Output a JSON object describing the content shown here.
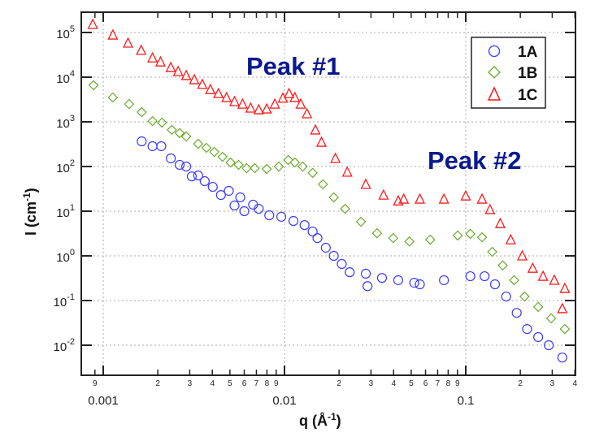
{
  "chart_data": {
    "type": "scatter",
    "xscale": "log",
    "yscale": "log",
    "xlabel": "q (Å",
    "xlabel_sup": "-1",
    "xlabel_end": ")",
    "ylabel": "I (cm",
    "ylabel_sup": "-1",
    "ylabel_end": ")",
    "xlim": [
      0.00075,
      0.41
    ],
    "ylim": [
      0.0022,
      280000
    ],
    "grid": true,
    "legend_position": "top-right",
    "x_major_ticks": [
      {
        "value": 0.001,
        "label": "0.001"
      },
      {
        "value": 0.01,
        "label": "0.01"
      },
      {
        "value": 0.1,
        "label": "0.1"
      }
    ],
    "x_minor_ticks": [
      {
        "value": 0.0009,
        "label": "9"
      },
      {
        "value": 0.002,
        "label": "2"
      },
      {
        "value": 0.003,
        "label": "3"
      },
      {
        "value": 0.004,
        "label": "4"
      },
      {
        "value": 0.005,
        "label": "5"
      },
      {
        "value": 0.006,
        "label": "6"
      },
      {
        "value": 0.007,
        "label": "7"
      },
      {
        "value": 0.008,
        "label": "8"
      },
      {
        "value": 0.009,
        "label": "9"
      },
      {
        "value": 0.02,
        "label": "2"
      },
      {
        "value": 0.03,
        "label": "3"
      },
      {
        "value": 0.04,
        "label": "4"
      },
      {
        "value": 0.05,
        "label": "5"
      },
      {
        "value": 0.06,
        "label": "6"
      },
      {
        "value": 0.07,
        "label": "7"
      },
      {
        "value": 0.08,
        "label": "8"
      },
      {
        "value": 0.09,
        "label": "9"
      },
      {
        "value": 0.2,
        "label": "2"
      },
      {
        "value": 0.3,
        "label": "3"
      },
      {
        "value": 0.4,
        "label": "4"
      }
    ],
    "y_ticks": [
      {
        "value": 100000,
        "base": "10",
        "exp": "5"
      },
      {
        "value": 10000,
        "base": "10",
        "exp": "4"
      },
      {
        "value": 1000,
        "base": "10",
        "exp": "3"
      },
      {
        "value": 100,
        "base": "10",
        "exp": "2"
      },
      {
        "value": 10,
        "base": "10",
        "exp": "1"
      },
      {
        "value": 1,
        "base": "10",
        "exp": "0"
      },
      {
        "value": 0.1,
        "base": "10",
        "exp": "-1"
      },
      {
        "value": 0.01,
        "base": "10",
        "exp": "-2"
      }
    ],
    "annotations": [
      {
        "text": "Peak #1",
        "q": 0.0105,
        "I": 25000
      },
      {
        "text": "Peak #2",
        "q": 0.08,
        "I": 100
      }
    ],
    "series": [
      {
        "name": "1A",
        "marker": "circle",
        "color": "#3a3aff",
        "points": [
          [
            0.00163,
            366
          ],
          [
            0.00187,
            285
          ],
          [
            0.00209,
            285
          ],
          [
            0.00236,
            152
          ],
          [
            0.00264,
            109
          ],
          [
            0.00287,
            100
          ],
          [
            0.00308,
            60
          ],
          [
            0.00334,
            63
          ],
          [
            0.00363,
            47
          ],
          [
            0.00402,
            35
          ],
          [
            0.00446,
            23
          ],
          [
            0.00493,
            28.5
          ],
          [
            0.0053,
            13.4
          ],
          [
            0.0057,
            20.4
          ],
          [
            0.006,
            10
          ],
          [
            0.00671,
            14
          ],
          [
            0.00721,
            11.3
          ],
          [
            0.00824,
            8.1
          ],
          [
            0.0096,
            7.5
          ],
          [
            0.0112,
            6.05
          ],
          [
            0.0129,
            4.9
          ],
          [
            0.0143,
            3.5
          ],
          [
            0.0152,
            2.5
          ],
          [
            0.0169,
            1.52
          ],
          [
            0.0187,
            1.0
          ],
          [
            0.0207,
            0.66
          ],
          [
            0.0229,
            0.43
          ],
          [
            0.0281,
            0.4
          ],
          [
            0.0287,
            0.21
          ],
          [
            0.0345,
            0.32
          ],
          [
            0.0424,
            0.285
          ],
          [
            0.052,
            0.25
          ],
          [
            0.0558,
            0.231
          ],
          [
            0.0758,
            0.285
          ],
          [
            0.106,
            0.35
          ],
          [
            0.127,
            0.35
          ],
          [
            0.145,
            0.231
          ],
          [
            0.167,
            0.123
          ],
          [
            0.191,
            0.053
          ],
          [
            0.218,
            0.023
          ],
          [
            0.251,
            0.0152
          ],
          [
            0.287,
            0.01
          ],
          [
            0.341,
            0.0053
          ]
        ]
      },
      {
        "name": "1B",
        "marker": "diamond",
        "color": "#6aaa2a",
        "points": [
          [
            0.000885,
            6600
          ],
          [
            0.00113,
            3500
          ],
          [
            0.00139,
            2500
          ],
          [
            0.00163,
            1650
          ],
          [
            0.00187,
            1040
          ],
          [
            0.00211,
            960
          ],
          [
            0.00239,
            660
          ],
          [
            0.00264,
            560
          ],
          [
            0.00287,
            470
          ],
          [
            0.00334,
            323
          ],
          [
            0.00371,
            262
          ],
          [
            0.0041,
            212
          ],
          [
            0.00455,
            165
          ],
          [
            0.00504,
            123
          ],
          [
            0.00558,
            109
          ],
          [
            0.00618,
            92
          ],
          [
            0.00685,
            92
          ],
          [
            0.00798,
            88
          ],
          [
            0.00931,
            100
          ],
          [
            0.0105,
            140
          ],
          [
            0.0114,
            123
          ],
          [
            0.0126,
            100
          ],
          [
            0.0143,
            72
          ],
          [
            0.0163,
            40
          ],
          [
            0.0187,
            20.4
          ],
          [
            0.0216,
            11.3
          ],
          [
            0.0264,
            5.8
          ],
          [
            0.0324,
            3.2
          ],
          [
            0.0398,
            2.5
          ],
          [
            0.0489,
            2.1
          ],
          [
            0.0637,
            2.3
          ],
          [
            0.0903,
            2.85
          ],
          [
            0.106,
            3.1
          ],
          [
            0.123,
            2.6
          ],
          [
            0.14,
            1.23
          ],
          [
            0.16,
            0.61
          ],
          [
            0.185,
            0.285
          ],
          [
            0.211,
            0.123
          ],
          [
            0.251,
            0.072
          ],
          [
            0.296,
            0.04
          ],
          [
            0.352,
            0.023
          ]
        ]
      },
      {
        "name": "1C",
        "marker": "triangle",
        "color": "#ff1a1a",
        "points": [
          [
            0.000876,
            152000
          ],
          [
            0.00113,
            88000
          ],
          [
            0.00137,
            58000
          ],
          [
            0.00162,
            40000
          ],
          [
            0.00187,
            27000
          ],
          [
            0.00207,
            22000
          ],
          [
            0.00236,
            16500
          ],
          [
            0.00259,
            13400
          ],
          [
            0.00287,
            10900
          ],
          [
            0.00318,
            8800
          ],
          [
            0.00352,
            6900
          ],
          [
            0.0039,
            5300
          ],
          [
            0.00432,
            4300
          ],
          [
            0.00479,
            3500
          ],
          [
            0.0053,
            2850
          ],
          [
            0.00587,
            2500
          ],
          [
            0.0065,
            2040
          ],
          [
            0.00721,
            1870
          ],
          [
            0.00798,
            1950
          ],
          [
            0.00885,
            2500
          ],
          [
            0.0098,
            3400
          ],
          [
            0.0106,
            4300
          ],
          [
            0.0114,
            3500
          ],
          [
            0.0123,
            2500
          ],
          [
            0.0133,
            1520
          ],
          [
            0.0148,
            660
          ],
          [
            0.016,
            350
          ],
          [
            0.0191,
            152
          ],
          [
            0.0222,
            75
          ],
          [
            0.0281,
            40
          ],
          [
            0.0352,
            23
          ],
          [
            0.0424,
            17
          ],
          [
            0.0455,
            18.7
          ],
          [
            0.0558,
            18.7
          ],
          [
            0.0758,
            18.7
          ],
          [
            0.1,
            22
          ],
          [
            0.123,
            18.7
          ],
          [
            0.136,
            10.9
          ],
          [
            0.155,
            5.3
          ],
          [
            0.177,
            2.3
          ],
          [
            0.205,
            1.0
          ],
          [
            0.234,
            0.53
          ],
          [
            0.267,
            0.35
          ],
          [
            0.308,
            0.285
          ],
          [
            0.352,
            0.187
          ],
          [
            0.341,
            0.066
          ]
        ]
      }
    ]
  }
}
